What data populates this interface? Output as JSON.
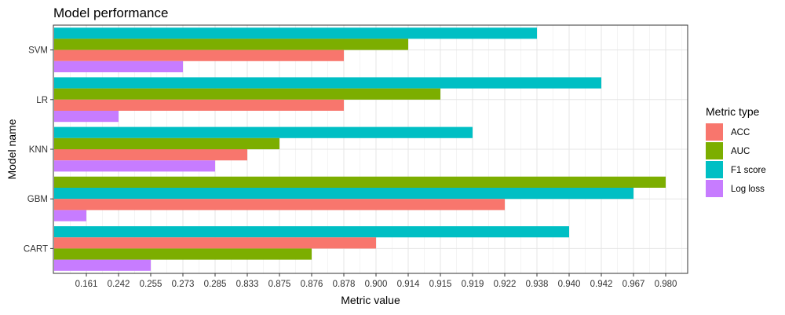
{
  "chart_data": {
    "type": "bar",
    "orientation": "horizontal",
    "title": "Model performance",
    "xlabel": "Metric value",
    "ylabel": "Model name",
    "x_axis_scale": "ordinal (ticks are sorted distinct values)",
    "x_ticks": [
      "0.161",
      "0.242",
      "0.255",
      "0.273",
      "0.285",
      "0.833",
      "0.875",
      "0.876",
      "0.878",
      "0.900",
      "0.914",
      "0.915",
      "0.919",
      "0.922",
      "0.938",
      "0.940",
      "0.942",
      "0.967",
      "0.980"
    ],
    "categories": [
      "SVM",
      "LR",
      "KNN",
      "GBM",
      "CART"
    ],
    "legend": {
      "title": "Metric type",
      "position": "right"
    },
    "series": [
      {
        "name": "ACC",
        "color": "#F8766D",
        "values": [
          0.878,
          0.878,
          0.833,
          0.922,
          0.9
        ]
      },
      {
        "name": "AUC",
        "color": "#7CAE00",
        "values": [
          0.914,
          0.915,
          0.875,
          0.98,
          0.876
        ]
      },
      {
        "name": "F1 score",
        "color": "#00BFC4",
        "values": [
          0.938,
          0.942,
          0.919,
          0.967,
          0.94
        ]
      },
      {
        "name": "Log loss",
        "color": "#C77CFF",
        "values": [
          0.273,
          0.242,
          0.285,
          0.161,
          0.255
        ]
      }
    ],
    "bar_order_top_to_bottom": {
      "SVM": [
        "F1 score",
        "AUC",
        "ACC",
        "Log loss"
      ],
      "LR": [
        "F1 score",
        "AUC",
        "ACC",
        "Log loss"
      ],
      "KNN": [
        "F1 score",
        "AUC",
        "ACC",
        "Log loss"
      ],
      "GBM": [
        "AUC",
        "F1 score",
        "ACC",
        "Log loss"
      ],
      "CART": [
        "F1 score",
        "ACC",
        "AUC",
        "Log loss"
      ]
    },
    "grid": true
  }
}
